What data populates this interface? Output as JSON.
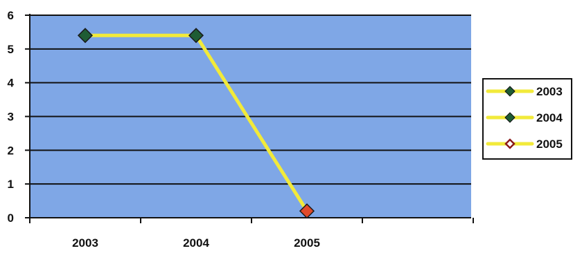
{
  "chart_data": {
    "type": "line",
    "title": "",
    "xlabel": "",
    "ylabel": "",
    "categories": [
      "2003",
      "2004",
      "2005"
    ],
    "ylim": [
      0,
      6
    ],
    "y_ticks": [
      "0",
      "1",
      "2",
      "3",
      "4",
      "5",
      "6"
    ],
    "grid": true,
    "legend_position": "right",
    "series": [
      {
        "values": [
          5.4,
          5.4,
          0.2
        ],
        "line_color": "#f2ea3a",
        "marker": "diamond",
        "marker_colors": [
          "#1e5c34",
          "#1e5c34",
          "#e04a2a"
        ]
      }
    ],
    "legend": [
      {
        "label": "2003",
        "line_color": "#f2ea3a",
        "marker_color": "#1e5c34",
        "marker_style": "filled"
      },
      {
        "label": "2004",
        "line_color": "#f2ea3a",
        "marker_color": "#1e5c34",
        "marker_style": "filled"
      },
      {
        "label": "2005",
        "line_color": "#f2ea3a",
        "marker_color": "#8b1a1a",
        "marker_style": "hollow"
      }
    ],
    "colors": {
      "plot_background": "#7fa7e6",
      "gridline": "#111111",
      "axis": "#111111",
      "legend_background": "#ffffff"
    }
  }
}
